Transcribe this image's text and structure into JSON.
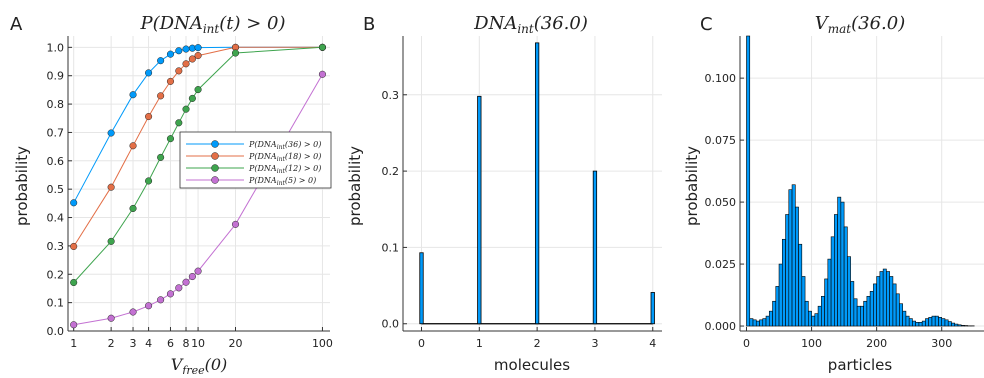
{
  "chart_data": [
    {
      "panel": "A",
      "type": "line",
      "title": "P(DNA_int(t) > 0)",
      "xlabel": "V_free(0)",
      "ylabel": "probability",
      "xscale": "log",
      "xlim": [
        0.9,
        115
      ],
      "ylim": [
        0,
        1.04
      ],
      "xticks": [
        1,
        2,
        3,
        4,
        6,
        8,
        10,
        20,
        100
      ],
      "xtick_labels": [
        "1",
        "2",
        "3",
        "4",
        "6",
        "8",
        "10",
        "20",
        "100"
      ],
      "yticks": [
        0.0,
        0.1,
        0.2,
        0.3,
        0.4,
        0.5,
        0.6,
        0.7,
        0.8,
        0.9,
        1.0
      ],
      "ytick_labels": [
        "0.0",
        "0.1",
        "0.2",
        "0.3",
        "0.4",
        "0.5",
        "0.6",
        "0.7",
        "0.8",
        "0.9",
        "1.0"
      ],
      "grid": true,
      "legend_position": "right",
      "series": [
        {
          "name": "P(DNA_int(36) > 0)",
          "color": "#009AFA",
          "x": [
            1,
            2,
            3,
            4,
            5,
            6,
            7,
            8,
            9,
            10,
            20,
            100
          ],
          "y": [
            0.452,
            0.698,
            0.833,
            0.91,
            0.953,
            0.976,
            0.988,
            0.994,
            0.997,
            0.999,
            1.0,
            1.0
          ]
        },
        {
          "name": "P(DNA_int(18) > 0)",
          "color": "#E36F47",
          "x": [
            1,
            2,
            3,
            4,
            5,
            6,
            7,
            8,
            9,
            10,
            20,
            100
          ],
          "y": [
            0.298,
            0.507,
            0.653,
            0.756,
            0.829,
            0.88,
            0.917,
            0.942,
            0.959,
            0.971,
            1.0,
            1.0
          ]
        },
        {
          "name": "P(DNA_int(12) > 0)",
          "color": "#3EA44E",
          "x": [
            1,
            2,
            3,
            4,
            5,
            6,
            7,
            8,
            9,
            10,
            20,
            100
          ],
          "y": [
            0.171,
            0.316,
            0.432,
            0.529,
            0.612,
            0.678,
            0.734,
            0.782,
            0.82,
            0.851,
            0.98,
            1.0
          ]
        },
        {
          "name": "P(DNA_int(5) > 0)",
          "color": "#C371D2",
          "x": [
            1,
            2,
            3,
            4,
            5,
            6,
            7,
            8,
            9,
            10,
            20,
            100
          ],
          "y": [
            0.022,
            0.045,
            0.067,
            0.089,
            0.11,
            0.131,
            0.152,
            0.172,
            0.192,
            0.211,
            0.376,
            0.905
          ]
        }
      ]
    },
    {
      "panel": "B",
      "type": "bar",
      "title": "DNA_int(36.0)",
      "xlabel": "molecules",
      "ylabel": "probability",
      "xlim": [
        -0.32,
        4.16
      ],
      "ylim": [
        -0.0095,
        0.377
      ],
      "xticks": [
        0,
        1,
        2,
        3,
        4
      ],
      "xtick_labels": [
        "0",
        "1",
        "2",
        "3",
        "4"
      ],
      "yticks": [
        0.0,
        0.1,
        0.2,
        0.3
      ],
      "ytick_labels": [
        "0.0",
        "0.1",
        "0.2",
        "0.3"
      ],
      "grid": true,
      "bar_width": 0.06,
      "color": "#009AFA",
      "x": [
        0,
        1,
        2,
        3,
        4
      ],
      "values": [
        0.093,
        0.298,
        0.368,
        0.2,
        0.041
      ]
    },
    {
      "panel": "C",
      "type": "bar",
      "title": "V_mat(36.0)",
      "xlabel": "particles",
      "ylabel": "probability",
      "xlim": [
        -10,
        365
      ],
      "ylim": [
        -0.002,
        0.117
      ],
      "xticks": [
        0,
        100,
        200,
        300
      ],
      "xtick_labels": [
        "0",
        "100",
        "200",
        "300"
      ],
      "yticks": [
        0.0,
        0.025,
        0.05,
        0.075,
        0.1
      ],
      "ytick_labels": [
        "0.000",
        "0.025",
        "0.050",
        "0.075",
        "0.100"
      ],
      "grid": true,
      "bin_width": 5,
      "color": "#009AFA",
      "bin_starts": [
        0,
        5,
        10,
        15,
        20,
        25,
        30,
        35,
        40,
        45,
        50,
        55,
        60,
        65,
        70,
        75,
        80,
        85,
        90,
        95,
        100,
        105,
        110,
        115,
        120,
        125,
        130,
        135,
        140,
        145,
        150,
        155,
        160,
        165,
        170,
        175,
        180,
        185,
        190,
        195,
        200,
        205,
        210,
        215,
        220,
        225,
        230,
        235,
        240,
        245,
        250,
        255,
        260,
        265,
        270,
        275,
        280,
        285,
        290,
        295,
        300,
        305,
        310,
        315,
        320,
        325,
        330,
        335,
        340,
        345,
        350
      ],
      "values": [
        0.117,
        0.003,
        0.0025,
        0.002,
        0.0025,
        0.003,
        0.004,
        0.006,
        0.01,
        0.016,
        0.025,
        0.035,
        0.045,
        0.055,
        0.057,
        0.048,
        0.033,
        0.02,
        0.01,
        0.006,
        0.004,
        0.005,
        0.008,
        0.012,
        0.019,
        0.027,
        0.036,
        0.045,
        0.052,
        0.05,
        0.04,
        0.028,
        0.018,
        0.011,
        0.008,
        0.008,
        0.01,
        0.012,
        0.014,
        0.017,
        0.02,
        0.022,
        0.023,
        0.022,
        0.02,
        0.017,
        0.013,
        0.009,
        0.006,
        0.004,
        0.003,
        0.002,
        0.0015,
        0.0015,
        0.002,
        0.003,
        0.0035,
        0.004,
        0.004,
        0.0035,
        0.003,
        0.0025,
        0.0018,
        0.0012,
        0.0008,
        0.0005,
        0.0003,
        0.0002,
        0.0001,
        0.0001,
        0.0
      ]
    }
  ],
  "panels": {
    "a": {
      "letter": "A",
      "title_main": "P(DNA",
      "title_sub": "int",
      "title_rest": "(t) > 0)",
      "xlabel_main": "V",
      "xlabel_sub": "free",
      "xlabel_rest": "(0)",
      "ylabel": "probability",
      "legend": [
        {
          "main": "P(DNA",
          "sub": "int",
          "rest": "(36) > 0)"
        },
        {
          "main": "P(DNA",
          "sub": "int",
          "rest": "(18) > 0)"
        },
        {
          "main": "P(DNA",
          "sub": "int",
          "rest": "(12) > 0)"
        },
        {
          "main": "P(DNA",
          "sub": "int",
          "rest": "(5) > 0)"
        }
      ]
    },
    "b": {
      "letter": "B",
      "title_main": "DNA",
      "title_sub": "int",
      "title_rest": "(36.0)",
      "xlabel": "molecules",
      "ylabel": "probability"
    },
    "c": {
      "letter": "C",
      "title_main": "V",
      "title_sub": "mat",
      "title_rest": "(36.0)",
      "xlabel": "particles",
      "ylabel": "probability"
    }
  },
  "colors": {
    "grid": "#e6e6e6",
    "axis": "#333333",
    "bar_stroke": "#000000"
  }
}
